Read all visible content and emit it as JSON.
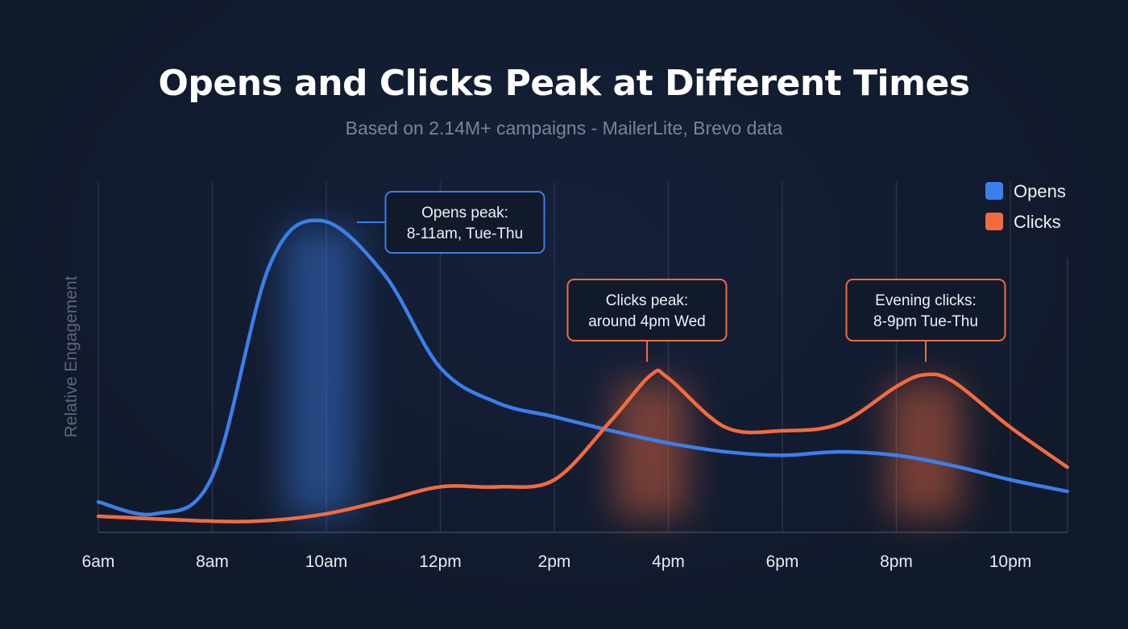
{
  "title": "Opens and Clicks Peak at Different Times",
  "subtitle": "Based on 2.14M+ campaigns - MailerLite, Brevo data",
  "chart_data": {
    "type": "line",
    "title": "Opens and Clicks Peak at Different Times",
    "subtitle": "Based on 2.14M+ campaigns - MailerLite, Brevo data",
    "xlabel": "",
    "ylabel": "Relative Engagement",
    "x_ticks": [
      "6am",
      "8am",
      "10am",
      "12pm",
      "2pm",
      "4pm",
      "6pm",
      "8pm",
      "10pm"
    ],
    "x_unit": "hour of day",
    "xlim": [
      6,
      23
    ],
    "ylim": [
      0,
      100
    ],
    "grid": "vertical",
    "legend_position": "top-right",
    "series": [
      {
        "name": "Opens",
        "color": "#3b7fe9",
        "x": [
          6,
          7,
          8,
          9,
          9.9,
          11,
          12,
          13,
          14,
          15,
          16,
          17,
          18,
          19,
          20,
          21,
          22,
          23
        ],
        "y": [
          8.7,
          5.3,
          16,
          76,
          89,
          74,
          47,
          37,
          33,
          29,
          25.5,
          23,
          22,
          23,
          22,
          19,
          15,
          11.7
        ]
      },
      {
        "name": "Clicks",
        "color": "#f26b3f",
        "x": [
          6,
          8,
          9,
          10,
          11,
          12,
          13,
          14,
          15,
          15.7,
          16,
          17,
          18,
          19,
          20,
          20.5,
          21,
          22,
          23
        ],
        "y": [
          4.6,
          3.2,
          3.4,
          5.3,
          9,
          13,
          13,
          15,
          32,
          45,
          44,
          30,
          29,
          31,
          41.6,
          45,
          43,
          30,
          18.6
        ]
      }
    ],
    "annotations": [
      {
        "series": "Opens",
        "x": 9.9,
        "lines": [
          "Opens peak:",
          "8-11am, Tue-Thu"
        ]
      },
      {
        "series": "Clicks",
        "x": 15.7,
        "lines": [
          "Clicks peak:",
          "around 4pm Wed"
        ]
      },
      {
        "series": "Clicks",
        "x": 20.5,
        "lines": [
          "Evening clicks:",
          "8-9pm Tue-Thu"
        ]
      }
    ]
  }
}
